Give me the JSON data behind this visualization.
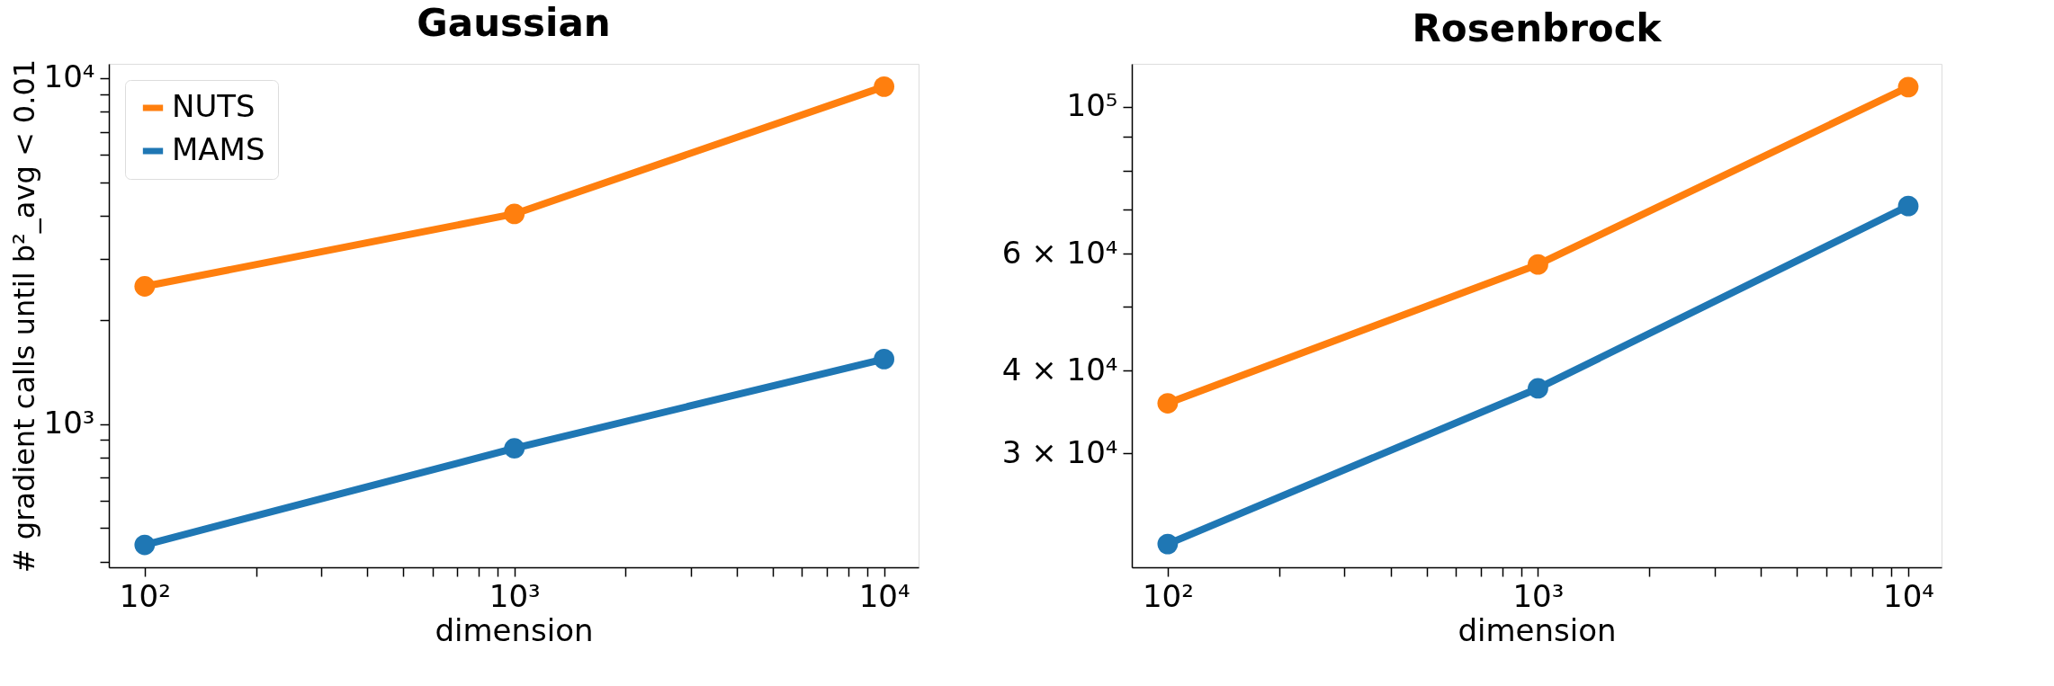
{
  "chart_data": [
    {
      "type": "line",
      "title": "Gaussian",
      "xlabel": "dimension",
      "ylabel": "# gradient calls until b²_avg < 0.01",
      "x": [
        100,
        1000,
        10000
      ],
      "series": [
        {
          "name": "NUTS",
          "color": "#ff7f0e",
          "values": [
            2500,
            4050,
            9450
          ]
        },
        {
          "name": "MAMS",
          "color": "#1f77b4",
          "values": [
            447,
            850,
            1540
          ]
        }
      ],
      "xlim": [
        80,
        12400
      ],
      "ylim": [
        385,
        11000
      ],
      "xticks": [
        {
          "value": 100,
          "label": "10²"
        },
        {
          "value": 200,
          "label": null
        },
        {
          "value": 300,
          "label": null
        },
        {
          "value": 400,
          "label": null
        },
        {
          "value": 500,
          "label": null
        },
        {
          "value": 600,
          "label": null
        },
        {
          "value": 700,
          "label": null
        },
        {
          "value": 800,
          "label": null
        },
        {
          "value": 900,
          "label": null
        },
        {
          "value": 1000,
          "label": "10³"
        },
        {
          "value": 2000,
          "label": null
        },
        {
          "value": 3000,
          "label": null
        },
        {
          "value": 4000,
          "label": null
        },
        {
          "value": 5000,
          "label": null
        },
        {
          "value": 6000,
          "label": null
        },
        {
          "value": 7000,
          "label": null
        },
        {
          "value": 8000,
          "label": null
        },
        {
          "value": 9000,
          "label": null
        },
        {
          "value": 10000,
          "label": "10⁴"
        }
      ],
      "yticks": [
        {
          "value": 400,
          "label": null
        },
        {
          "value": 500,
          "label": null
        },
        {
          "value": 600,
          "label": null
        },
        {
          "value": 700,
          "label": null
        },
        {
          "value": 800,
          "label": null
        },
        {
          "value": 900,
          "label": null
        },
        {
          "value": 1000,
          "label": "10³"
        },
        {
          "value": 2000,
          "label": null
        },
        {
          "value": 3000,
          "label": null
        },
        {
          "value": 4000,
          "label": null
        },
        {
          "value": 5000,
          "label": null
        },
        {
          "value": 6000,
          "label": null
        },
        {
          "value": 7000,
          "label": null
        },
        {
          "value": 8000,
          "label": null
        },
        {
          "value": 9000,
          "label": null
        },
        {
          "value": 10000,
          "label": "10⁴"
        }
      ],
      "log": "xy",
      "grid": false,
      "legend": "top left",
      "marker": "circle",
      "line_style": "solid"
    },
    {
      "type": "line",
      "title": "Rosenbrock",
      "xlabel": "dimension",
      "x": [
        100,
        1000,
        10000
      ],
      "series": [
        {
          "color": "#ff7f0e",
          "values": [
            35700,
            57800,
            107000
          ]
        },
        {
          "color": "#1f77b4",
          "values": [
            21900,
            37600,
            70800
          ]
        }
      ],
      "xlim": [
        80,
        12300
      ],
      "ylim": [
        20200,
        116000
      ],
      "xticks": [
        {
          "value": 100,
          "label": "10²"
        },
        {
          "value": 200,
          "label": null
        },
        {
          "value": 300,
          "label": null
        },
        {
          "value": 400,
          "label": null
        },
        {
          "value": 500,
          "label": null
        },
        {
          "value": 600,
          "label": null
        },
        {
          "value": 700,
          "label": null
        },
        {
          "value": 800,
          "label": null
        },
        {
          "value": 900,
          "label": null
        },
        {
          "value": 1000,
          "label": "10³"
        },
        {
          "value": 2000,
          "label": null
        },
        {
          "value": 3000,
          "label": null
        },
        {
          "value": 4000,
          "label": null
        },
        {
          "value": 5000,
          "label": null
        },
        {
          "value": 6000,
          "label": null
        },
        {
          "value": 7000,
          "label": null
        },
        {
          "value": 8000,
          "label": null
        },
        {
          "value": 9000,
          "label": null
        },
        {
          "value": 10000,
          "label": "10⁴"
        }
      ],
      "yticks": [
        {
          "value": 30000,
          "label": "3 × 10⁴"
        },
        {
          "value": 40000,
          "label": "4 × 10⁴"
        },
        {
          "value": 50000,
          "label": null
        },
        {
          "value": 60000,
          "label": "6 × 10⁴"
        },
        {
          "value": 70000,
          "label": null
        },
        {
          "value": 80000,
          "label": null
        },
        {
          "value": 90000,
          "label": null
        },
        {
          "value": 100000,
          "label": "10⁵"
        }
      ],
      "log": "xy",
      "grid": false,
      "marker": "circle",
      "line_style": "solid"
    }
  ]
}
